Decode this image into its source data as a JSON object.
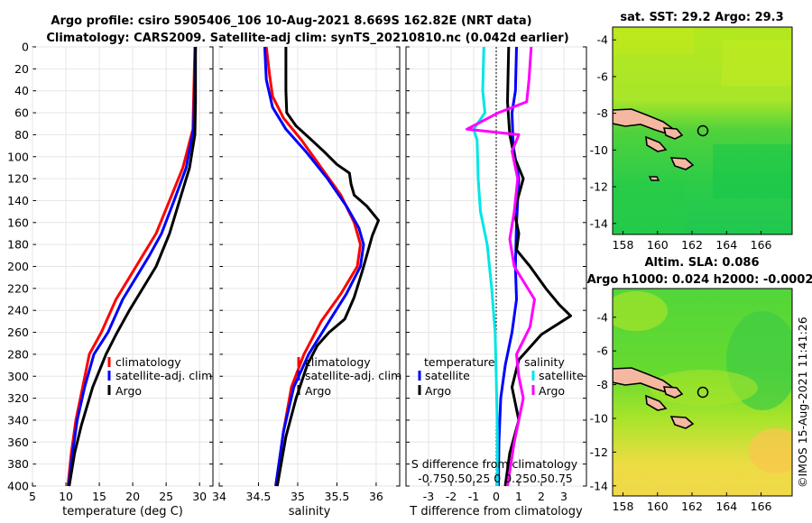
{
  "header": {
    "title_line1": "Argo profile: csiro 5905406_106 10-Aug-2021 8.669S 162.82E (NRT data)",
    "title_line2": "Climatology: CARS2009. Satellite-adj clim: synTS_20210810.nc (0.042d earlier)"
  },
  "colors": {
    "climatology": "#ff0000",
    "satellite": "#0000ff",
    "argo": "#000000",
    "salinity_satellite": "#00e5e5",
    "salinity_argo": "#ff00ff",
    "land": "#f4b8a0"
  },
  "depth_ticks": [
    0,
    20,
    40,
    60,
    80,
    100,
    120,
    140,
    160,
    180,
    200,
    220,
    240,
    260,
    280,
    300,
    320,
    340,
    360,
    380,
    400
  ],
  "chart_data": [
    {
      "type": "line",
      "name": "temperature-profile",
      "xlabel": "temperature (deg C)",
      "ylabel": "depth",
      "xlim": [
        5,
        32
      ],
      "ylim": [
        0,
        400
      ],
      "xticks": [
        "5",
        "10",
        "15",
        "20",
        "25",
        "30"
      ],
      "xtick_values": [
        5,
        10,
        15,
        20,
        25,
        30
      ],
      "legend": [
        "climatology",
        "satellite-adj. clim",
        "Argo"
      ],
      "series": [
        {
          "name": "climatology",
          "color": "#ff0000",
          "points": [
            [
              29.3,
              0
            ],
            [
              29.1,
              50
            ],
            [
              29.0,
              75
            ],
            [
              27.5,
              110
            ],
            [
              25.5,
              140
            ],
            [
              23.5,
              170
            ],
            [
              21.5,
              190
            ],
            [
              19.5,
              210
            ],
            [
              17.5,
              230
            ],
            [
              15.3,
              260
            ],
            [
              13.5,
              280
            ],
            [
              12.5,
              310
            ],
            [
              11.5,
              340
            ],
            [
              10.8,
              370
            ],
            [
              10.3,
              400
            ]
          ]
        },
        {
          "name": "satellite-adj. clim",
          "color": "#0000ff",
          "points": [
            [
              29.4,
              0
            ],
            [
              29.2,
              50
            ],
            [
              29.1,
              75
            ],
            [
              28.0,
              110
            ],
            [
              26.2,
              140
            ],
            [
              24.3,
              170
            ],
            [
              22.5,
              190
            ],
            [
              20.5,
              210
            ],
            [
              18.5,
              230
            ],
            [
              16.3,
              260
            ],
            [
              14.2,
              280
            ],
            [
              12.8,
              310
            ],
            [
              11.7,
              340
            ],
            [
              11.0,
              370
            ],
            [
              10.4,
              400
            ]
          ]
        },
        {
          "name": "Argo",
          "color": "#000000",
          "points": [
            [
              29.4,
              0
            ],
            [
              29.4,
              50
            ],
            [
              29.3,
              80
            ],
            [
              28.5,
              110
            ],
            [
              27.0,
              140
            ],
            [
              25.5,
              170
            ],
            [
              23.5,
              200
            ],
            [
              21.5,
              220
            ],
            [
              19.5,
              240
            ],
            [
              17.5,
              262
            ],
            [
              16.0,
              280
            ],
            [
              14.0,
              310
            ],
            [
              12.3,
              345
            ],
            [
              11.3,
              370
            ],
            [
              10.5,
              400
            ]
          ]
        }
      ]
    },
    {
      "type": "line",
      "name": "salinity-profile",
      "xlabel": "salinity",
      "ylabel": "depth",
      "xlim": [
        34,
        36.3
      ],
      "ylim": [
        0,
        400
      ],
      "xticks": [
        "34",
        "34.5",
        "35",
        "35.5",
        "36"
      ],
      "xtick_values": [
        34,
        34.5,
        35,
        35.5,
        36
      ],
      "legend": [
        "climatology",
        "satellite-adj. clim",
        "Argo"
      ],
      "series": [
        {
          "name": "climatology",
          "color": "#ff0000",
          "points": [
            [
              34.6,
              0
            ],
            [
              34.64,
              25
            ],
            [
              34.68,
              45
            ],
            [
              34.82,
              65
            ],
            [
              35.05,
              85
            ],
            [
              35.3,
              110
            ],
            [
              35.55,
              135
            ],
            [
              35.72,
              160
            ],
            [
              35.8,
              180
            ],
            [
              35.76,
              200
            ],
            [
              35.55,
              225
            ],
            [
              35.3,
              250
            ],
            [
              35.08,
              280
            ],
            [
              34.92,
              310
            ],
            [
              34.82,
              350
            ],
            [
              34.72,
              400
            ]
          ]
        },
        {
          "name": "satellite-adj. clim",
          "color": "#0000ff",
          "points": [
            [
              34.58,
              0
            ],
            [
              34.6,
              30
            ],
            [
              34.68,
              55
            ],
            [
              34.85,
              75
            ],
            [
              35.1,
              95
            ],
            [
              35.38,
              120
            ],
            [
              35.62,
              145
            ],
            [
              35.78,
              165
            ],
            [
              35.84,
              180
            ],
            [
              35.8,
              200
            ],
            [
              35.62,
              225
            ],
            [
              35.4,
              250
            ],
            [
              35.14,
              280
            ],
            [
              34.95,
              310
            ],
            [
              34.82,
              350
            ],
            [
              34.72,
              400
            ]
          ]
        },
        {
          "name": "Argo",
          "color": "#000000",
          "points": [
            [
              34.85,
              0
            ],
            [
              34.85,
              40
            ],
            [
              34.86,
              60
            ],
            [
              34.98,
              72
            ],
            [
              35.15,
              83
            ],
            [
              35.33,
              95
            ],
            [
              35.5,
              107
            ],
            [
              35.66,
              115
            ],
            [
              35.68,
              125
            ],
            [
              35.72,
              135
            ],
            [
              35.88,
              145
            ],
            [
              36.03,
              158
            ],
            [
              35.95,
              172
            ],
            [
              35.88,
              190
            ],
            [
              35.82,
              205
            ],
            [
              35.72,
              228
            ],
            [
              35.6,
              248
            ],
            [
              35.4,
              260
            ],
            [
              35.25,
              272
            ],
            [
              35.12,
              290
            ],
            [
              34.98,
              320
            ],
            [
              34.85,
              355
            ],
            [
              34.74,
              400
            ]
          ]
        }
      ]
    },
    {
      "type": "line",
      "name": "difference-profile",
      "xlabel": "T difference from climatology",
      "x2label": "S difference from climatology",
      "ylabel": "depth",
      "xlim": [
        -4,
        4
      ],
      "ylim": [
        0,
        400
      ],
      "xticks": [
        "-3",
        "-2",
        "-1",
        "0",
        "1",
        "2",
        "3"
      ],
      "xtick_values": [
        -3,
        -2,
        -1,
        0,
        1,
        2,
        3
      ],
      "x2ticks": "-0.750.50.25 0 0.250.50.75",
      "legend_title_t": "temperature",
      "legend_title_s": "salinity",
      "legend": [
        "satellite",
        "Argo",
        "satellite",
        "Argo"
      ],
      "series": [
        {
          "name": "T satellite",
          "color": "#0000ff",
          "points": [
            [
              0.9,
              0
            ],
            [
              0.85,
              40
            ],
            [
              0.7,
              60
            ],
            [
              0.75,
              90
            ],
            [
              1.0,
              120
            ],
            [
              0.9,
              160
            ],
            [
              0.85,
              200
            ],
            [
              0.9,
              230
            ],
            [
              0.7,
              260
            ],
            [
              0.4,
              290
            ],
            [
              0.2,
              320
            ],
            [
              0.12,
              360
            ],
            [
              0.1,
              400
            ]
          ]
        },
        {
          "name": "T Argo",
          "color": "#000000",
          "points": [
            [
              0.55,
              0
            ],
            [
              0.5,
              50
            ],
            [
              0.6,
              80
            ],
            [
              0.8,
              100
            ],
            [
              1.2,
              120
            ],
            [
              0.8,
              150
            ],
            [
              1.0,
              170
            ],
            [
              0.9,
              185
            ],
            [
              1.5,
              200
            ],
            [
              2.2,
              220
            ],
            [
              2.8,
              235
            ],
            [
              3.3,
              245
            ],
            [
              2.0,
              262
            ],
            [
              1.0,
              285
            ],
            [
              0.7,
              310
            ],
            [
              1.0,
              340
            ],
            [
              0.6,
              370
            ],
            [
              0.4,
              400
            ]
          ]
        },
        {
          "name": "S satellite",
          "color": "#00e5e5",
          "points": [
            [
              -0.55,
              0
            ],
            [
              -0.6,
              40
            ],
            [
              -0.5,
              60
            ],
            [
              -1.0,
              75
            ],
            [
              -0.85,
              85
            ],
            [
              -0.8,
              120
            ],
            [
              -0.7,
              150
            ],
            [
              -0.4,
              180
            ],
            [
              -0.2,
              220
            ],
            [
              -0.05,
              260
            ],
            [
              0.0,
              300
            ],
            [
              0.05,
              350
            ],
            [
              0.05,
              400
            ]
          ]
        },
        {
          "name": "S Argo",
          "color": "#ff00ff",
          "points": [
            [
              1.55,
              0
            ],
            [
              1.45,
              30
            ],
            [
              1.35,
              50
            ],
            [
              0.1,
              60
            ],
            [
              -1.3,
              75
            ],
            [
              1.0,
              80
            ],
            [
              0.7,
              95
            ],
            [
              0.95,
              120
            ],
            [
              0.8,
              150
            ],
            [
              0.6,
              175
            ],
            [
              0.8,
              200
            ],
            [
              1.7,
              230
            ],
            [
              1.5,
              255
            ],
            [
              0.9,
              280
            ],
            [
              1.0,
              300
            ],
            [
              1.2,
              320
            ],
            [
              0.8,
              360
            ],
            [
              0.5,
              400
            ]
          ]
        }
      ]
    },
    {
      "type": "heatmap",
      "name": "sst-map",
      "title": "sat. SST: 29.2 Argo: 29.3",
      "xticks": [
        "158",
        "160",
        "162",
        "164",
        "166"
      ],
      "xtick_values": [
        158,
        160,
        162,
        164,
        166
      ],
      "yticks": [
        "-4",
        "-6",
        "-8",
        "-10",
        "-12",
        "-14"
      ],
      "ytick_values": [
        -4,
        -6,
        -8,
        -10,
        -12,
        -14
      ],
      "xlim": [
        157.4,
        167.8
      ],
      "ylim": [
        -14.6,
        -3.3
      ],
      "marker": [
        162.82,
        -8.669
      ]
    },
    {
      "type": "heatmap",
      "name": "sla-map",
      "title_line1": "Altim. SLA: 0.086",
      "title_line2": "Argo h1000: 0.024 h2000: -0.0002",
      "xticks": [
        "158",
        "160",
        "162",
        "164",
        "166"
      ],
      "xtick_values": [
        158,
        160,
        162,
        164,
        166
      ],
      "yticks": [
        "-4",
        "-6",
        "-8",
        "-10",
        "-12",
        "-14"
      ],
      "ytick_values": [
        -4,
        -6,
        -8,
        -10,
        -12,
        -14
      ],
      "xlim": [
        157.4,
        167.8
      ],
      "ylim": [
        -14.6,
        -2.3
      ],
      "marker": [
        162.82,
        -8.669
      ]
    }
  ],
  "footer": {
    "stamp": "©IMOS 15-Aug-2021 11:41:26"
  }
}
